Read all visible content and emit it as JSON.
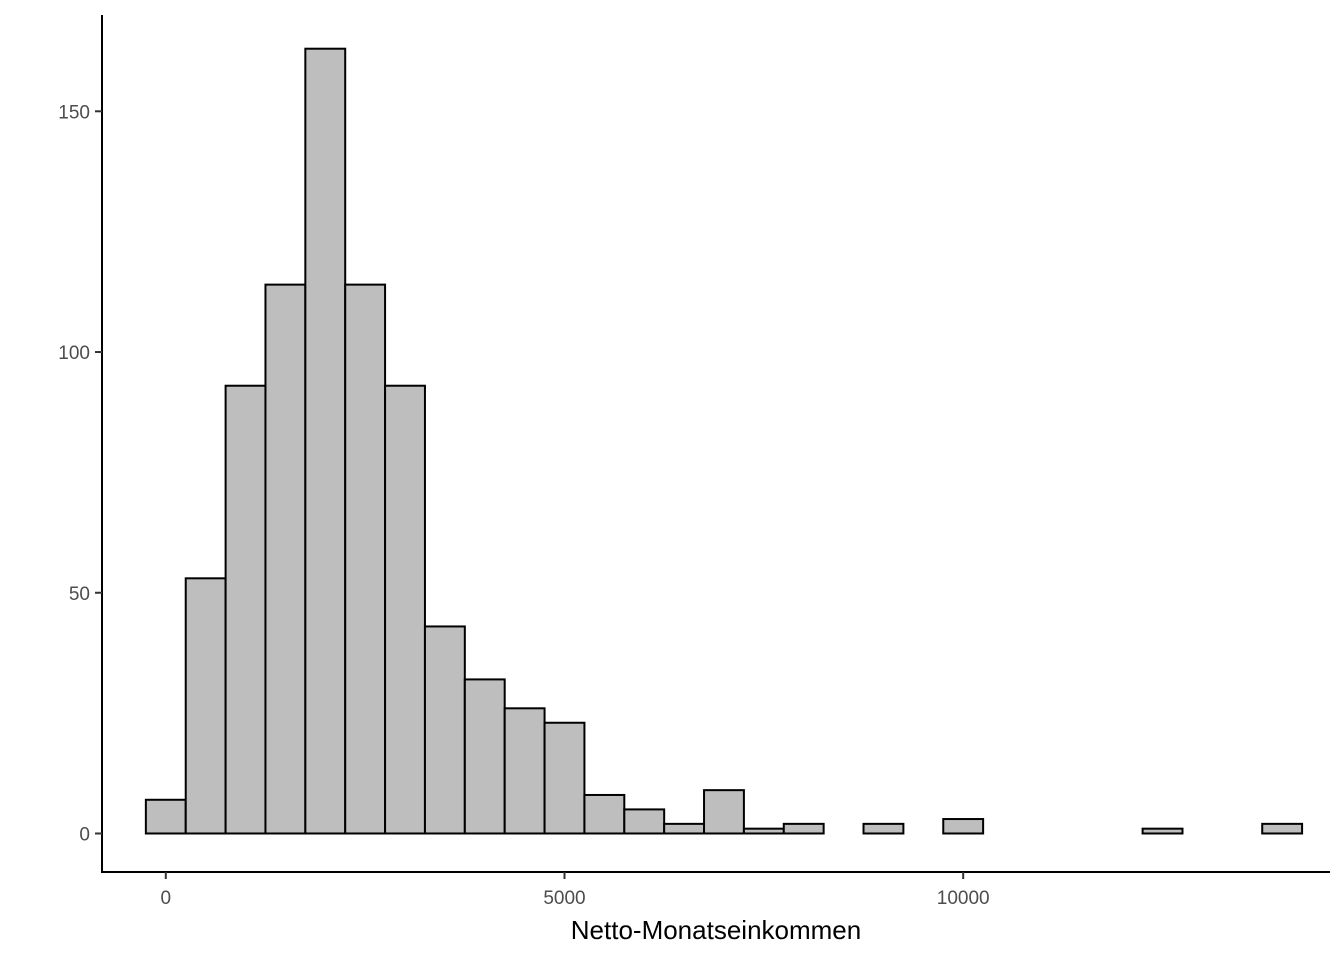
{
  "chart_data": {
    "type": "bar",
    "subtype": "histogram",
    "title": "",
    "xlabel": "Netto-Monatseinkommen",
    "ylabel": "",
    "xlim": [
      -800,
      14600
    ],
    "ylim": [
      -8,
      170
    ],
    "x_ticks": [
      0,
      5000,
      10000
    ],
    "y_ticks": [
      0,
      50,
      100,
      150
    ],
    "bin_width": 500,
    "bins": [
      {
        "x0": -250,
        "x1": 250,
        "count": 7
      },
      {
        "x0": 250,
        "x1": 750,
        "count": 53
      },
      {
        "x0": 750,
        "x1": 1250,
        "count": 93
      },
      {
        "x0": 1250,
        "x1": 1750,
        "count": 114
      },
      {
        "x0": 1750,
        "x1": 2250,
        "count": 163
      },
      {
        "x0": 2250,
        "x1": 2750,
        "count": 114
      },
      {
        "x0": 2750,
        "x1": 3250,
        "count": 93
      },
      {
        "x0": 3250,
        "x1": 3750,
        "count": 43
      },
      {
        "x0": 3750,
        "x1": 4250,
        "count": 32
      },
      {
        "x0": 4250,
        "x1": 4750,
        "count": 26
      },
      {
        "x0": 4750,
        "x1": 5250,
        "count": 23
      },
      {
        "x0": 5250,
        "x1": 5750,
        "count": 8
      },
      {
        "x0": 5750,
        "x1": 6250,
        "count": 5
      },
      {
        "x0": 6250,
        "x1": 6750,
        "count": 2
      },
      {
        "x0": 6750,
        "x1": 7250,
        "count": 9
      },
      {
        "x0": 7250,
        "x1": 7750,
        "count": 1
      },
      {
        "x0": 7750,
        "x1": 8250,
        "count": 2
      },
      {
        "x0": 8250,
        "x1": 8750,
        "count": 0
      },
      {
        "x0": 8750,
        "x1": 9250,
        "count": 2
      },
      {
        "x0": 9250,
        "x1": 9750,
        "count": 0
      },
      {
        "x0": 9750,
        "x1": 10250,
        "count": 3
      },
      {
        "x0": 10250,
        "x1": 10750,
        "count": 0
      },
      {
        "x0": 10750,
        "x1": 11250,
        "count": 0
      },
      {
        "x0": 11250,
        "x1": 11750,
        "count": 0
      },
      {
        "x0": 11750,
        "x1": 12250,
        "count": 0
      },
      {
        "x0": 12250,
        "x1": 12750,
        "count": 1
      },
      {
        "x0": 12750,
        "x1": 13250,
        "count": 0
      },
      {
        "x0": 13250,
        "x1": 13750,
        "count": 0
      },
      {
        "x0": 13750,
        "x1": 14250,
        "count": 2
      }
    ],
    "bar_fill": "#bebebe",
    "bar_stroke": "#000000",
    "grid": false,
    "legend": "none"
  }
}
